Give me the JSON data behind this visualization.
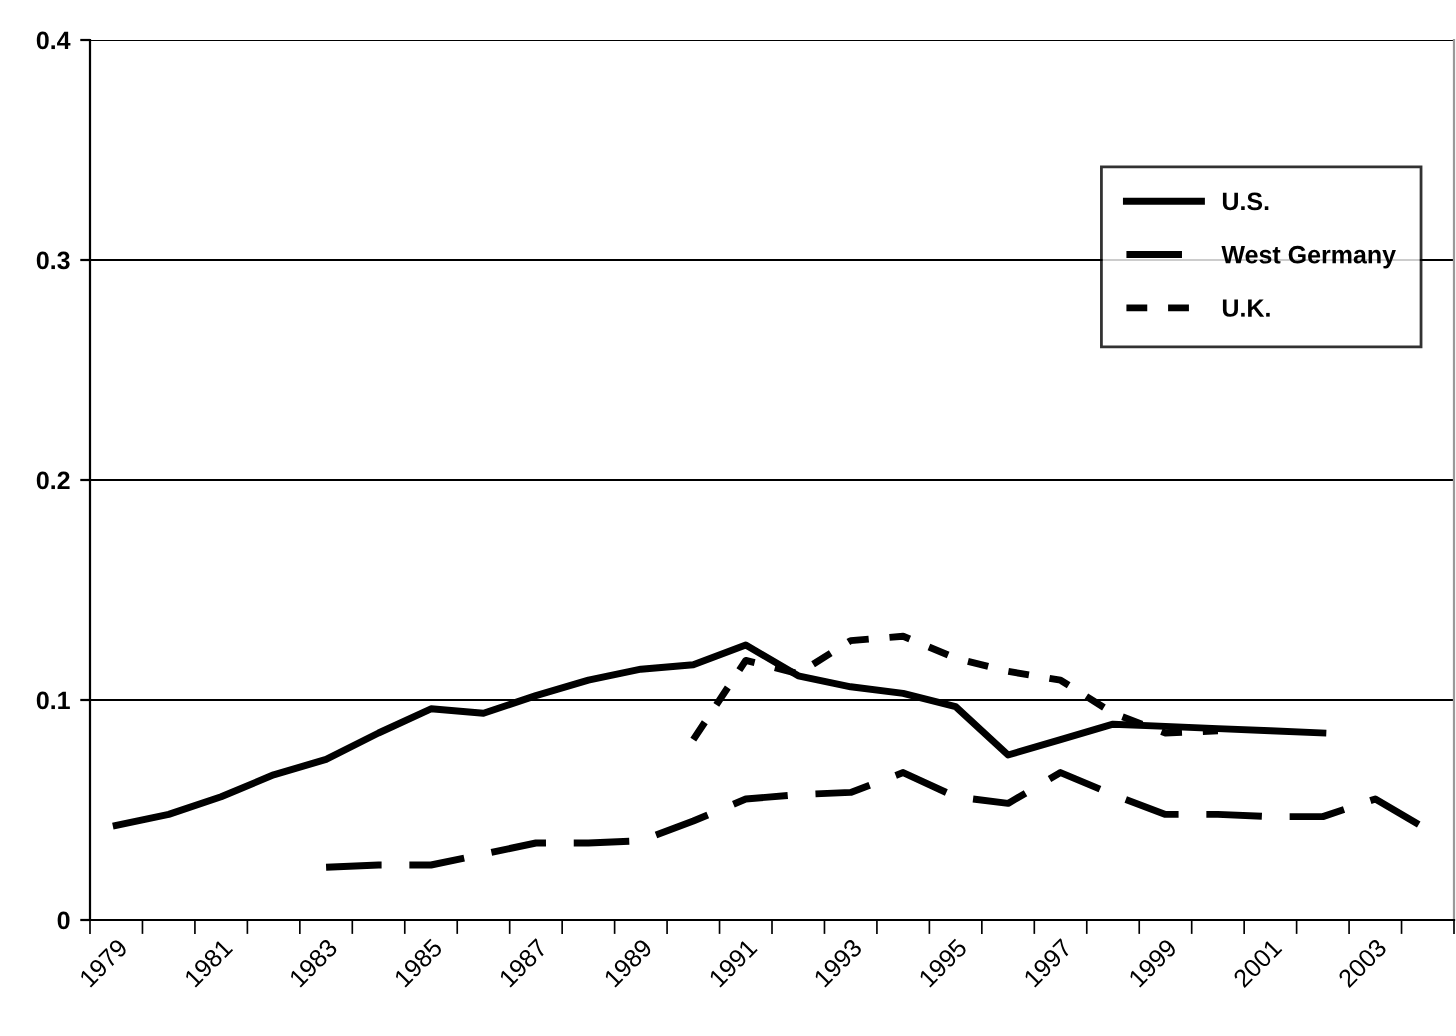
{
  "chart_data": {
    "type": "line",
    "categories": [
      "1979",
      null,
      "1981",
      null,
      "1983",
      null,
      "1985",
      null,
      "1987",
      null,
      "1989",
      null,
      "1991",
      null,
      "1993",
      null,
      "1995",
      null,
      "1997",
      null,
      "1999",
      null,
      "2001",
      null,
      "2003",
      null
    ],
    "series": [
      {
        "name": "U.S.",
        "color": "#000000",
        "line_style": "solid",
        "values": [
          0.043,
          0.048,
          0.056,
          0.066,
          0.073,
          0.085,
          0.096,
          0.094,
          0.102,
          0.109,
          0.114,
          0.116,
          0.125,
          0.111,
          0.106,
          0.103,
          0.097,
          0.075,
          0.082,
          0.089,
          0.088,
          0.087,
          0.086,
          0.085,
          null,
          null
        ]
      },
      {
        "name": "West Germany",
        "color": "#000000",
        "line_style": "dashed",
        "values": [
          null,
          null,
          null,
          null,
          0.024,
          0.025,
          0.025,
          0.03,
          0.035,
          0.035,
          0.036,
          0.045,
          0.055,
          0.057,
          0.058,
          0.067,
          0.056,
          0.053,
          0.067,
          0.057,
          0.048,
          0.048,
          0.047,
          0.047,
          0.055,
          0.041
        ]
      },
      {
        "name": "U.K.",
        "color": "#000000",
        "line_style": "dotted",
        "values": [
          null,
          null,
          null,
          null,
          null,
          null,
          null,
          null,
          null,
          null,
          null,
          0.082,
          0.118,
          0.112,
          0.127,
          0.129,
          0.119,
          0.113,
          0.109,
          0.094,
          0.085,
          0.086,
          null,
          null,
          null,
          null
        ]
      }
    ],
    "ylim": [
      0,
      0.4
    ],
    "yticks": [
      0,
      0.1,
      0.2,
      0.3,
      0.4
    ],
    "grid": "y",
    "legend": "top right",
    "marker": "none"
  }
}
